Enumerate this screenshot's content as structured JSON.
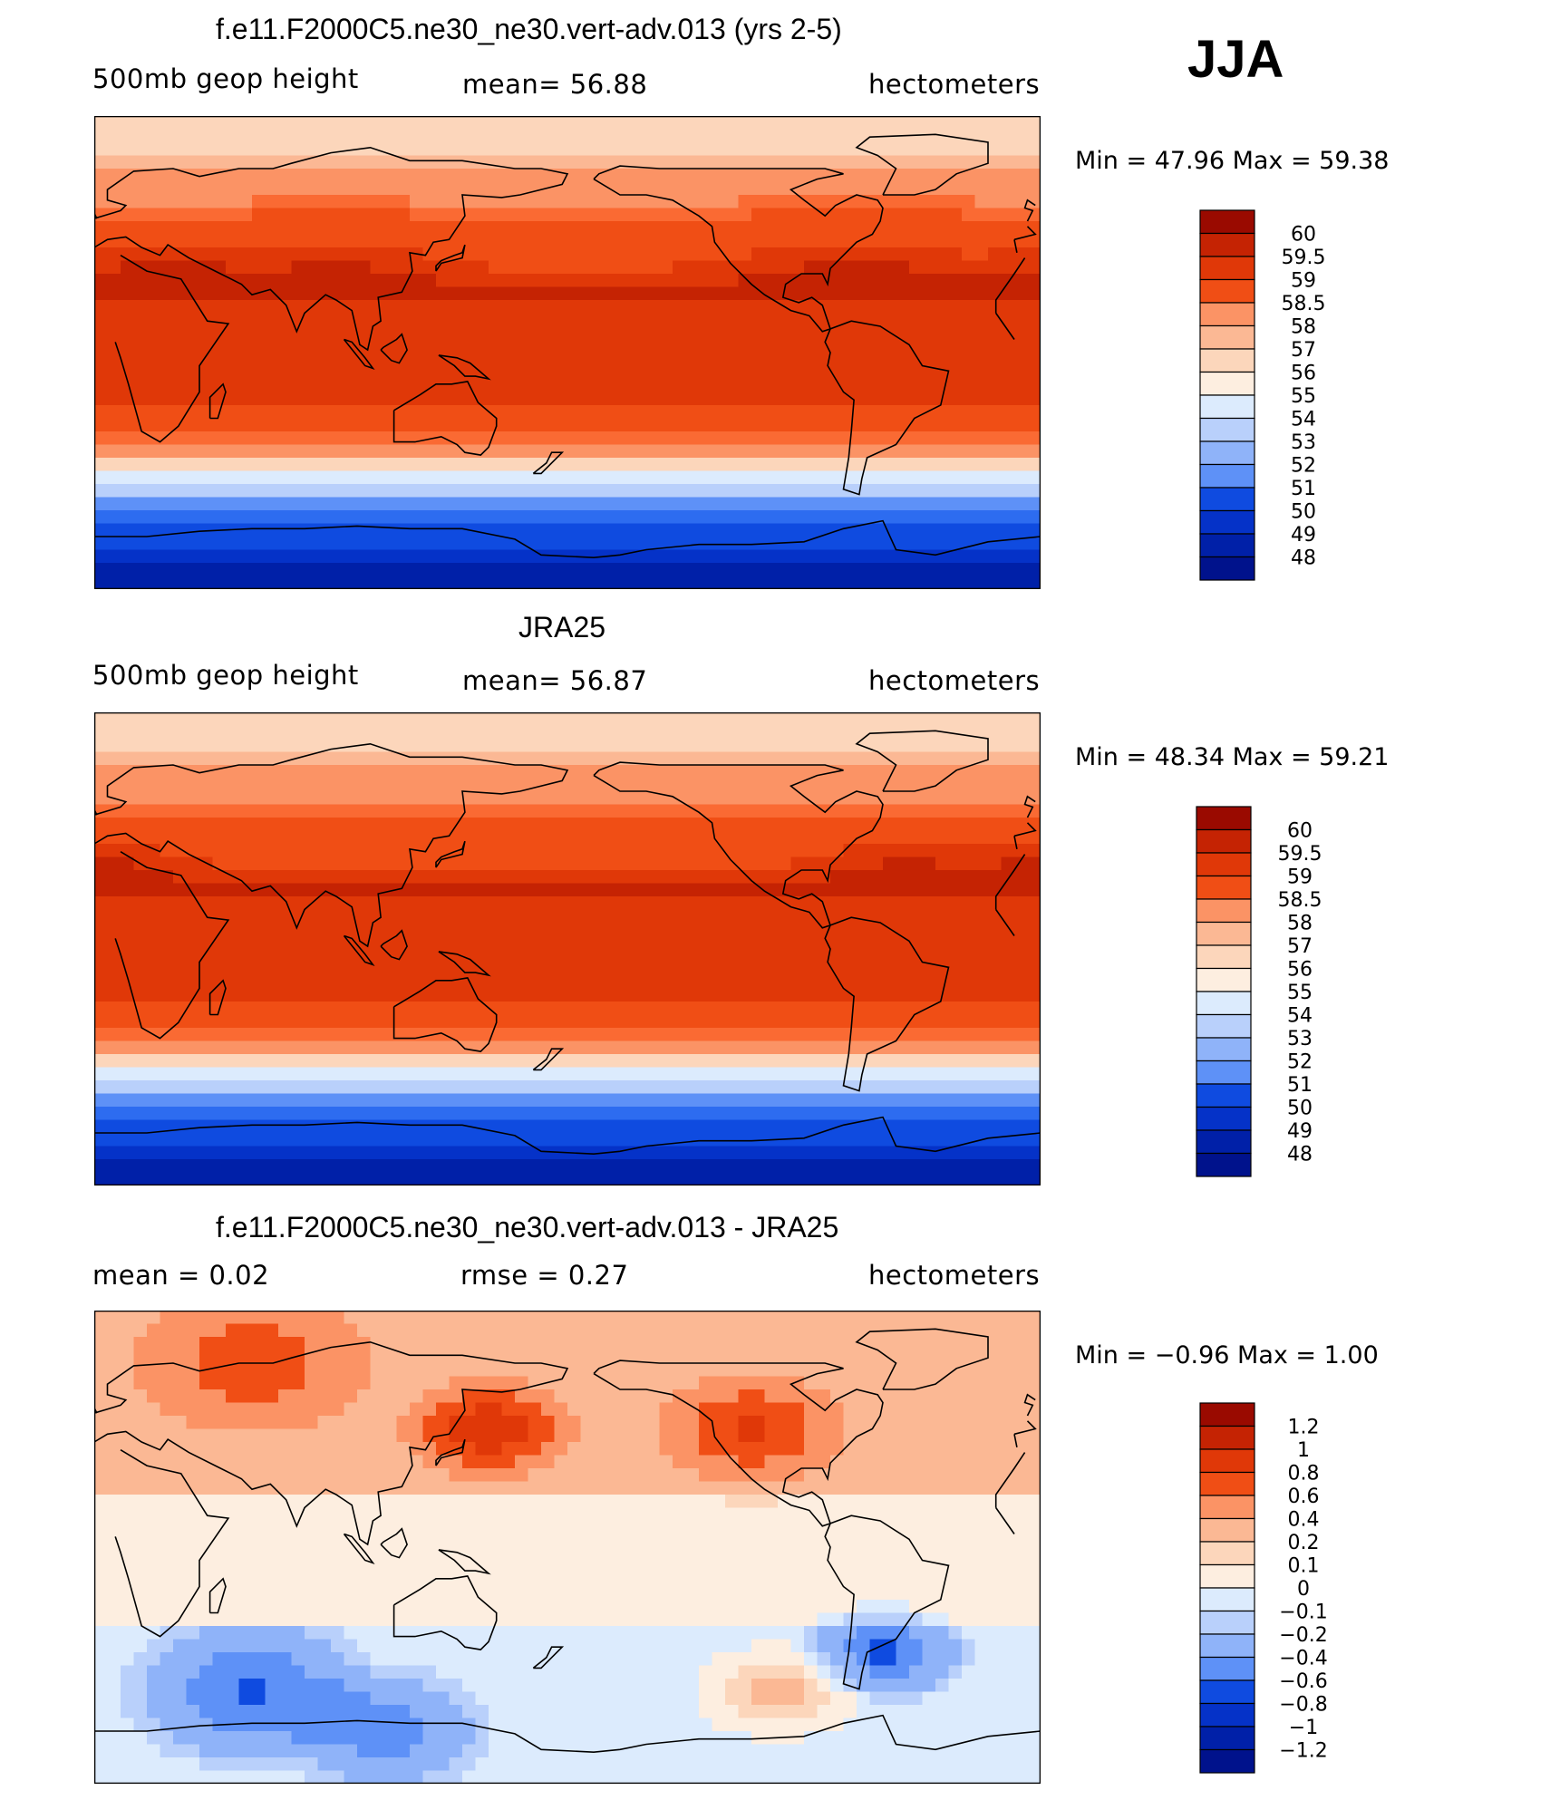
{
  "season": "JJA",
  "palettes": {
    "height": [
      "#00128c",
      "#0020a8",
      "#0532c8",
      "#0f4be0",
      "#2d6cf0",
      "#5e91f7",
      "#8fb3f9",
      "#b9d0fb",
      "#dcebfd",
      "#fdeee0",
      "#fcd6bb",
      "#fbb894",
      "#fb9365",
      "#fa6a33",
      "#f04e15",
      "#e03808",
      "#c52303",
      "#9a0a00"
    ],
    "diff": [
      "#00128c",
      "#0020a8",
      "#0532c8",
      "#0f4be0",
      "#2d6cf0",
      "#5e91f7",
      "#8fb3f9",
      "#b9d0fb",
      "#dcebfd",
      "#fdeee0",
      "#fcd6bb",
      "#fbb894",
      "#fb9365",
      "#fa6a33",
      "#f04e15",
      "#e03808",
      "#c52303",
      "#9a0a00"
    ]
  },
  "chart_data": [
    {
      "type": "heatmap",
      "title": "f.e11.F2000C5.ne30_ne30.vert-adv.013 (yrs 2-5)",
      "variable": "500mb  geop  height",
      "mean_text": "mean=   56.88",
      "units": "hectometers",
      "min_max_text": "Min  =    47.96  Max  =    59.38",
      "min": 47.96,
      "max": 59.38,
      "mean": 56.88,
      "colorbar_labels": [
        "60",
        "59.5",
        "59",
        "58.5",
        "58",
        "57",
        "56",
        "55",
        "54",
        "53",
        "52",
        "51",
        "50",
        "49",
        "48"
      ],
      "field_type": "height",
      "contour_levels": [
        48,
        48.5,
        49,
        49.5,
        50,
        50.5,
        51,
        51.5,
        52,
        52.5,
        53,
        53.5,
        54,
        54.5,
        55,
        55.5,
        56,
        56.5,
        57,
        57.5,
        58,
        58.5,
        59,
        59.5,
        60
      ],
      "mean_index": 12,
      "features": [
        {
          "lon": 90,
          "lat": 30,
          "index": 15,
          "r": 40
        },
        {
          "lon": 290,
          "lat": 32,
          "index": 15,
          "r": 45
        },
        {
          "lon": 20,
          "lat": 30,
          "index": 15,
          "r": 30
        }
      ]
    },
    {
      "type": "heatmap",
      "title": "JRA25",
      "variable": "500mb  geop  height",
      "mean_text": "mean=   56.87",
      "units": "hectometers",
      "min_max_text": "Min  =    48.34  Max  =    59.21",
      "min": 48.34,
      "max": 59.21,
      "mean": 56.87,
      "colorbar_labels": [
        "60",
        "59.5",
        "59",
        "58.5",
        "58",
        "57",
        "56",
        "55",
        "54",
        "53",
        "52",
        "51",
        "50",
        "49",
        "48"
      ],
      "field_type": "height",
      "contour_levels": [
        48,
        48.5,
        49,
        49.5,
        50,
        50.5,
        51,
        51.5,
        52,
        52.5,
        53,
        53.5,
        54,
        54.5,
        55,
        55.5,
        56,
        56.5,
        57,
        57.5,
        58,
        58.5,
        59,
        59.5,
        60
      ],
      "mean_index": 12,
      "features": [
        {
          "lon": 310,
          "lat": 30,
          "index": 15,
          "r": 30
        },
        {
          "lon": 5,
          "lat": 30,
          "index": 15,
          "r": 25
        }
      ]
    },
    {
      "type": "heatmap",
      "title": "f.e11.F2000C5.ne30_ne30.vert-adv.013 - JRA25",
      "variable": "mean =      0.02",
      "mean_text": "rmse =     0.27",
      "units": "hectometers",
      "min_max_text": "Min  =   −0.96  Max  =      1.00",
      "min": -0.96,
      "max": 1.0,
      "mean": 0.02,
      "rmse": 0.27,
      "colorbar_labels": [
        "1.2",
        "1",
        "0.8",
        "0.6",
        "0.4",
        "0.2",
        "0.1",
        "0",
        "−0.1",
        "−0.2",
        "−0.4",
        "−0.6",
        "−0.8",
        "−1",
        "−1.2"
      ],
      "field_type": "diff",
      "contour_levels": [
        -1.2,
        -1,
        -0.8,
        -0.6,
        -0.4,
        -0.2,
        -0.1,
        0,
        0.1,
        0.2,
        0.4,
        0.6,
        0.8,
        1,
        1.2
      ],
      "features": [
        {
          "lon": 150,
          "lat": 45,
          "value": 0.9,
          "r": 25
        },
        {
          "lon": 250,
          "lat": 45,
          "value": 0.7,
          "r": 30
        },
        {
          "lon": 60,
          "lat": 70,
          "value": 0.6,
          "r": 40
        },
        {
          "lon": 300,
          "lat": -40,
          "value": -0.6,
          "r": 20
        },
        {
          "lon": 60,
          "lat": -55,
          "value": -0.6,
          "r": 30
        },
        {
          "lon": 110,
          "lat": -70,
          "value": -0.5,
          "r": 25
        },
        {
          "lon": 260,
          "lat": -55,
          "value": 0.4,
          "r": 25
        }
      ]
    }
  ]
}
